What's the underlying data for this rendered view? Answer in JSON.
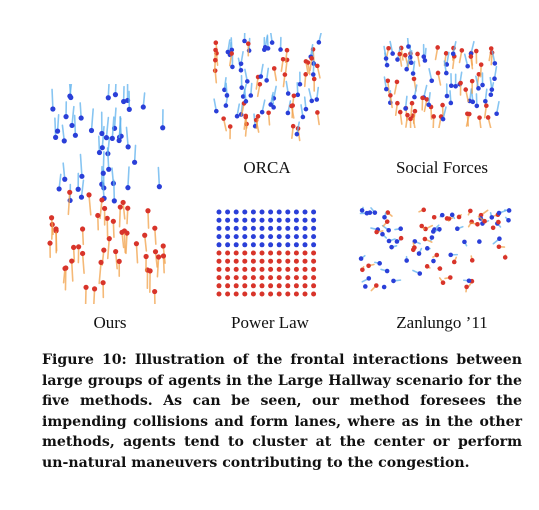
{
  "panels": [
    {
      "id": "ours",
      "label": "Ours",
      "pattern": "lanes"
    },
    {
      "id": "orca",
      "label": "ORCA",
      "pattern": "cluster"
    },
    {
      "id": "social",
      "label": "Social Forces",
      "pattern": "cluster"
    },
    {
      "id": "power",
      "label": "Power Law",
      "pattern": "grid"
    },
    {
      "id": "zanlungo",
      "label": "Zanlungo ’11",
      "pattern": "scatter"
    }
  ],
  "colors": {
    "group_a": "#2a3fd8",
    "group_b": "#d8342a",
    "trail_a": "#5fb2ee",
    "trail_b": "#f2a24a"
  },
  "caption": "Figure 10: Illustration of the frontal interactions between large groups of agents in the Large Hallway scenario for the five methods. As can be seen, our method foresees the impending collisions and form lanes, where as in the other methods, agents tend to cluster at the center or perform un-natural maneuvers contributing to the congestion."
}
